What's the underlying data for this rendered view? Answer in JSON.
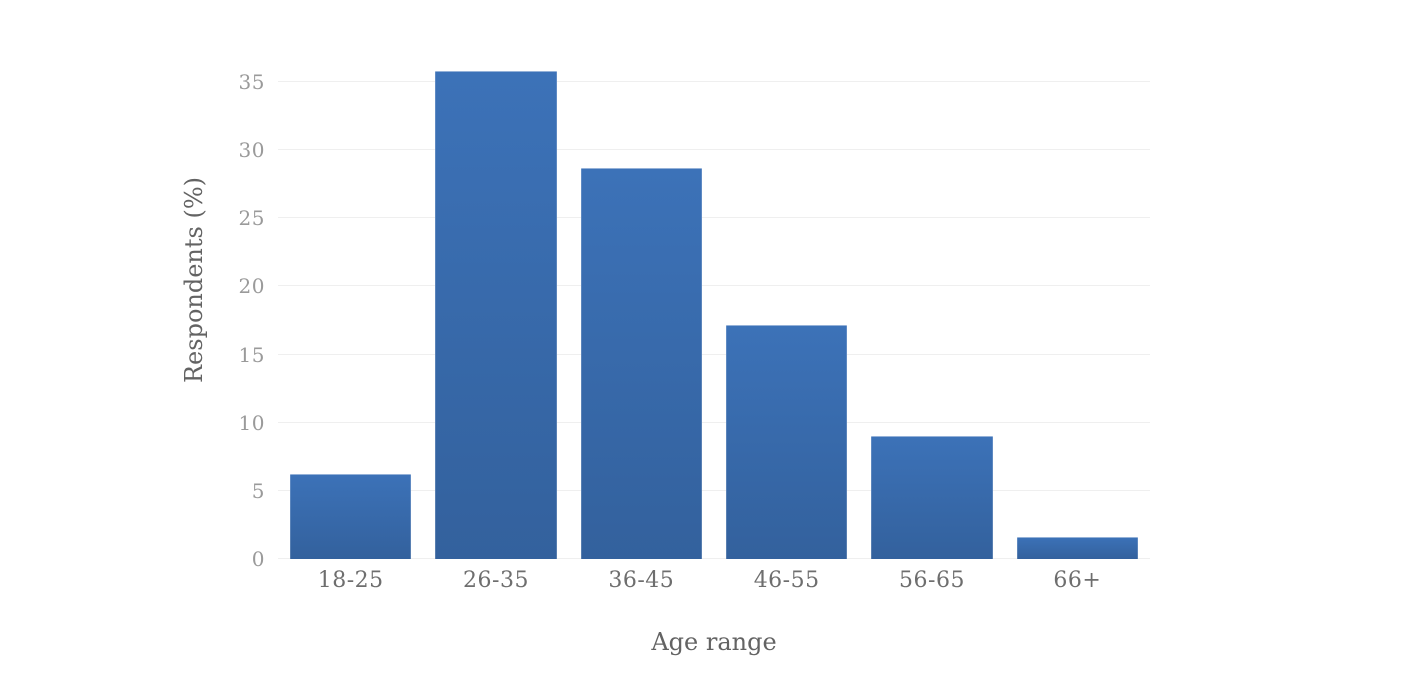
{
  "chart_data": {
    "type": "bar",
    "categories": [
      "18-25",
      "26-35",
      "36-45",
      "46-55",
      "56-65",
      "66+"
    ],
    "values": [
      6.2,
      35.8,
      28.7,
      17.2,
      9.0,
      1.6
    ],
    "title": "",
    "xlabel": "Age range",
    "ylabel": "Respondents (%)",
    "ylim": [
      0,
      36.6
    ],
    "yticks": [
      0,
      5,
      10,
      15,
      20,
      25,
      30,
      35
    ],
    "grid": true,
    "legend": "none",
    "colors": {
      "bar_top": "#3c72b8",
      "bar_bottom": "#33619d",
      "gridline": "#efefef",
      "y_tick_label": "#9a9a9a",
      "x_tick_label": "#6e6e6e",
      "axis_title": "#636363",
      "background": "#ffffff"
    }
  }
}
